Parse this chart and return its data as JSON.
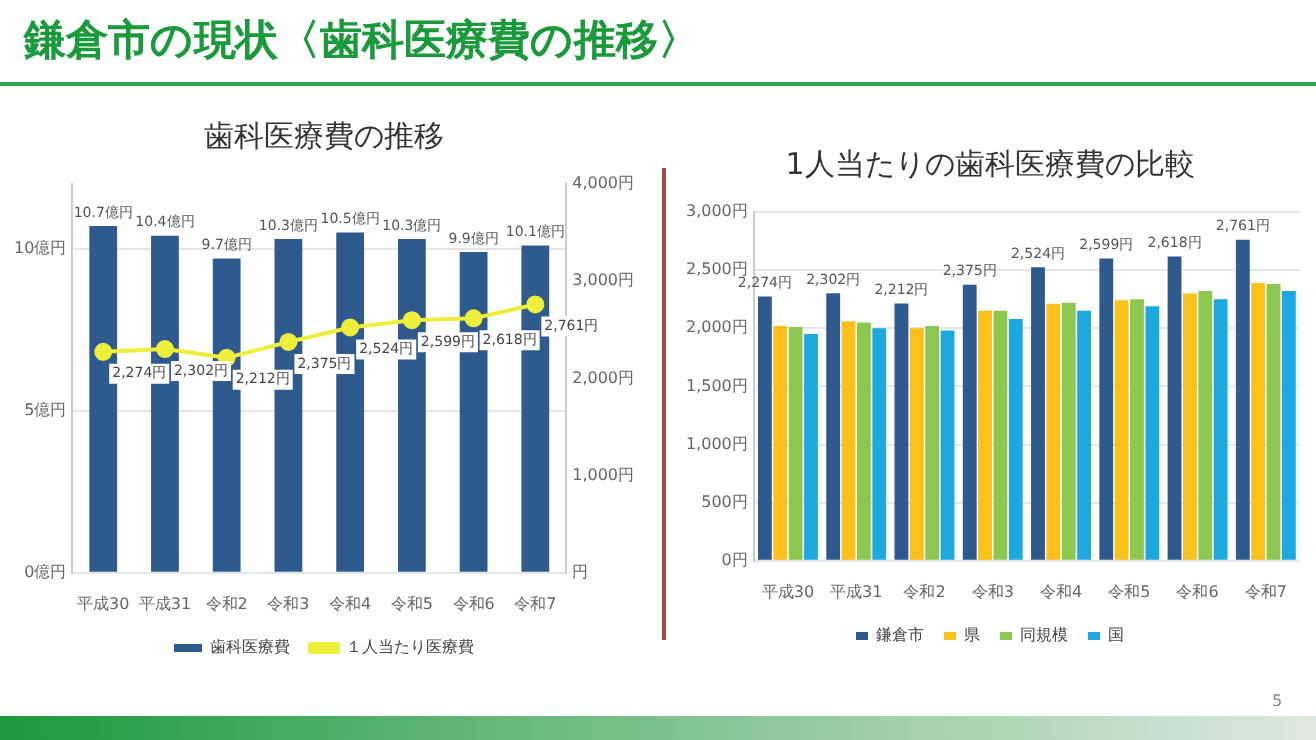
{
  "chart_data": [
    {
      "type": "bar",
      "title": "歯科医療費の推移",
      "categories": [
        "平成30",
        "平成31",
        "令和2",
        "令和3",
        "令和4",
        "令和5",
        "令和6",
        "令和7"
      ],
      "series": [
        {
          "name": "歯科医療費",
          "color": "#2e5a8e",
          "values": [
            10.7,
            10.4,
            9.7,
            10.3,
            10.5,
            10.3,
            9.9,
            10.1
          ],
          "value_labels": [
            "10.7億円",
            "10.4億円",
            "9.7億円",
            "10.3億円",
            "10.5億円",
            "10.3億円",
            "9.9億円",
            "10.1億円"
          ]
        },
        {
          "name": "１人当たり医療費",
          "type": "line",
          "axis": "y2",
          "color": "#eeee3c",
          "values": [
            2274,
            2302,
            2212,
            2375,
            2524,
            2599,
            2618,
            2761
          ],
          "value_labels": [
            "2,274円",
            "2,302円",
            "2,212円",
            "2,375円",
            "2,524円",
            "2,599円",
            "2,618円",
            "2,761円"
          ]
        }
      ],
      "ylim": [
        0,
        12
      ],
      "yticks": [
        {
          "value": 0,
          "label": "0億円"
        },
        {
          "value": 5,
          "label": "5億円"
        },
        {
          "value": 10,
          "label": "10億円"
        }
      ],
      "y2lim": [
        0,
        4000
      ],
      "y2ticks": [
        {
          "value": 0,
          "label": "円"
        },
        {
          "value": 1000,
          "label": "1,000円"
        },
        {
          "value": 2000,
          "label": "2,000円"
        },
        {
          "value": 3000,
          "label": "3,000円"
        },
        {
          "value": 4000,
          "label": "4,000円"
        }
      ],
      "grid": "y",
      "legend": "bottom",
      "marker": "circle",
      "annotations": [
        "鎌倉市の現状〈歯科医療費の推移〉",
        "5"
      ]
    },
    {
      "type": "bar",
      "title": "1人当たりの歯科医療費の比較",
      "categories": [
        "平成30",
        "平成31",
        "令和2",
        "令和3",
        "令和4",
        "令和5",
        "令和6",
        "令和7"
      ],
      "series": [
        {
          "name": "鎌倉市",
          "color": "#2e5a8e",
          "values": [
            2274,
            2302,
            2212,
            2375,
            2524,
            2599,
            2618,
            2761
          ],
          "value_labels": [
            "2,274円",
            "2,302円",
            "2,212円",
            "2,375円",
            "2,524円",
            "2,599円",
            "2,618円",
            "2,761円"
          ]
        },
        {
          "name": "県",
          "color": "#f9c11a",
          "values": [
            2020,
            2060,
            2000,
            2150,
            2210,
            2240,
            2300,
            2390
          ]
        },
        {
          "name": "同規模",
          "color": "#8cc850",
          "values": [
            2010,
            2050,
            2020,
            2150,
            2220,
            2250,
            2320,
            2380
          ]
        },
        {
          "name": "国",
          "color": "#1ea8e0",
          "values": [
            1950,
            2000,
            1980,
            2080,
            2150,
            2190,
            2250,
            2320
          ]
        }
      ],
      "ylim": [
        0,
        3000
      ],
      "yticks": [
        {
          "value": 0,
          "label": "0円"
        },
        {
          "value": 500,
          "label": "500円"
        },
        {
          "value": 1000,
          "label": "1,000円"
        },
        {
          "value": 1500,
          "label": "1,500円"
        },
        {
          "value": 2000,
          "label": "2,000円"
        },
        {
          "value": 2500,
          "label": "2,500円"
        },
        {
          "value": 3000,
          "label": "3,000円"
        }
      ],
      "grid": "y",
      "legend": "bottom"
    }
  ]
}
